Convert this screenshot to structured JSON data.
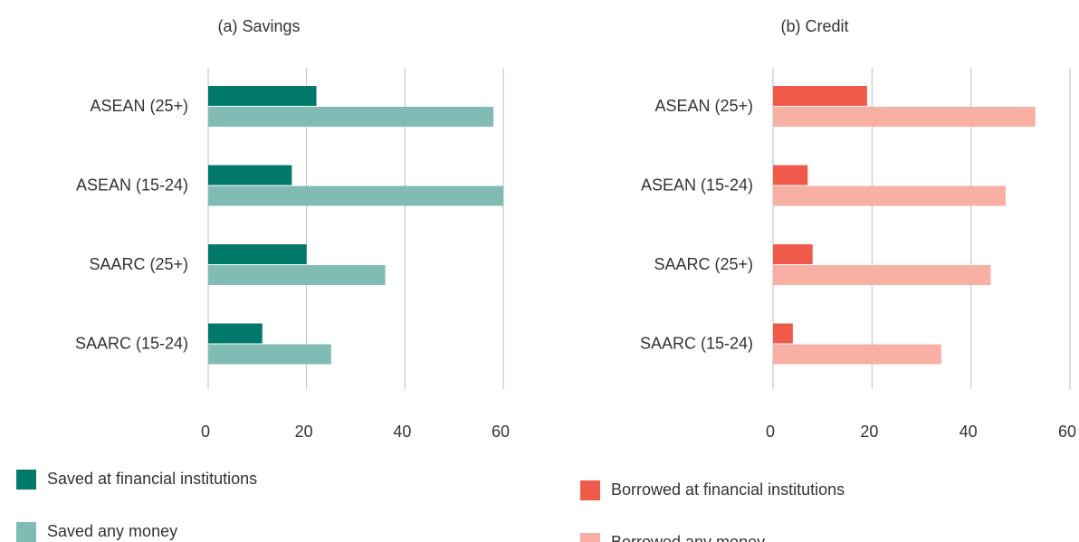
{
  "chart_data": [
    {
      "type": "bar",
      "orientation": "horizontal",
      "title": "(a) Savings",
      "categories": [
        "ASEAN (25+)",
        "ASEAN (15-24)",
        "SAARC (25+)",
        "SAARC (15-24)"
      ],
      "series": [
        {
          "name": "Saved at financial institutions",
          "color": "#00796b",
          "values": [
            22,
            17,
            20,
            11
          ]
        },
        {
          "name": "Saved any money",
          "color": "#80bcb4",
          "values": [
            58,
            60,
            36,
            25
          ]
        }
      ],
      "xlim": [
        0,
        60
      ],
      "xticks": [
        0,
        20,
        40,
        60
      ],
      "grid": true
    },
    {
      "type": "bar",
      "orientation": "horizontal",
      "title": "(b) Credit",
      "categories": [
        "ASEAN (25+)",
        "ASEAN (15-24)",
        "SAARC (25+)",
        "SAARC (15-24)"
      ],
      "series": [
        {
          "name": "Borrowed at financial institutions",
          "color": "#f05a4a",
          "values": [
            19,
            7,
            8,
            4
          ]
        },
        {
          "name": "Borrowed any money",
          "color": "#f8afa4",
          "values": [
            53,
            47,
            44,
            34
          ]
        }
      ],
      "xlim": [
        0,
        60
      ],
      "xticks": [
        0,
        20,
        40,
        60
      ],
      "grid": true
    }
  ]
}
